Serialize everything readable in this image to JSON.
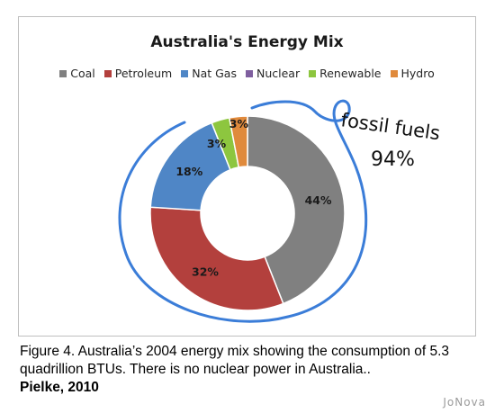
{
  "chart_data": {
    "type": "pie",
    "variant": "donut",
    "title": "Australia's Energy Mix",
    "legend_position": "top",
    "categories": [
      "Coal",
      "Petroleum",
      "Nat Gas",
      "Nuclear",
      "Renewable",
      "Hydro"
    ],
    "values": [
      44,
      32,
      18,
      0,
      3,
      3
    ],
    "labels": [
      "44%",
      "32%",
      "18%",
      "",
      "3%",
      "3%"
    ],
    "colors": [
      "#808080",
      "#b3403d",
      "#4f86c6",
      "#7f5f9f",
      "#8dc63f",
      "#e08a3c"
    ]
  },
  "annotation": {
    "line1": "fossil fuels",
    "line2": "94%",
    "color": "#3b7dd8"
  },
  "caption": {
    "text": "Figure 4. Australia’s 2004 energy mix showing the consumption of 5.3 quadrillion BTUs. There is no nuclear power in Australia..",
    "source": "Pielke, 2010"
  },
  "watermark": "JoNova"
}
